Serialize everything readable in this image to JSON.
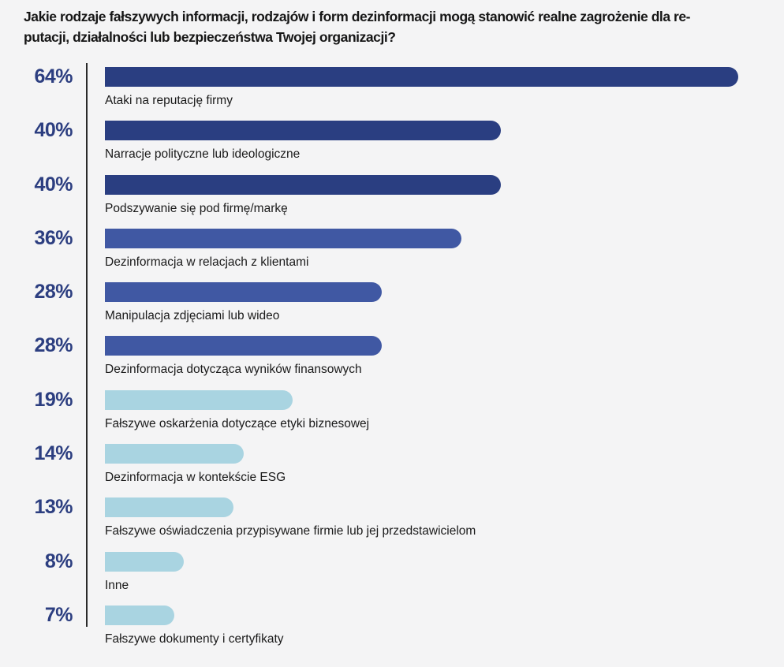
{
  "page": {
    "background_color": "#f4f4f5",
    "title_lines": [
      "Jakie rodzaje fałszywych informacji, rodzajów i form dezinformacji mogą stanowić realne zagrożenie dla re-",
      "putacji, działalności lub bezpieczeństwa Twojej organizacji?"
    ]
  },
  "chart_data": {
    "type": "bar",
    "orientation": "horizontal",
    "title": "Jakie rodzaje fałszywych informacji, rodzajów i form dezinformacji mogą stanowić realne zagrożenie dla reputacji, działalności lub bezpieczeństwa Twojej organizacji?",
    "unit": "%",
    "xlim": [
      0,
      64
    ],
    "grid": false,
    "legend": "none",
    "value_label_position": "left-of-axis",
    "category_label_position": "below-bar",
    "colors": {
      "dark_blue": "#2a3e81",
      "medium_blue": "#4058a3",
      "light_blue": "#a9d4e1",
      "value_text": "#2c3e80",
      "category_text": "#1a1a1a",
      "axis_line": "#2a2a2a",
      "background": "#f4f4f5"
    },
    "categories": [
      "Ataki na reputację firmy",
      "Narracje polityczne lub ideologiczne",
      "Podszywanie się pod firmę/markę",
      "Dezinformacja w relacjach z klientami",
      "Manipulacja zdjęciami lub wideo",
      "Dezinformacja dotycząca wyników finansowych",
      "Fałszywe oskarżenia dotyczące etyki biznesowej",
      "Dezinformacja w kontekście ESG",
      "Fałszywe oświadczenia przypisywane firmie lub jej przedstawicielom",
      "Inne",
      "Fałszywe dokumenty i certyfikaty"
    ],
    "values": [
      64,
      40,
      40,
      36,
      28,
      28,
      19,
      14,
      13,
      8,
      7
    ],
    "rows": [
      {
        "value": 64,
        "value_label": "64%",
        "label": "Ataki na reputację firmy",
        "color": "#2a3e81",
        "color_name": "dark_blue"
      },
      {
        "value": 40,
        "value_label": "40%",
        "label": "Narracje polityczne lub ideologiczne",
        "color": "#2a3e81",
        "color_name": "dark_blue"
      },
      {
        "value": 40,
        "value_label": "40%",
        "label": "Podszywanie się pod firmę/markę",
        "color": "#2a3e81",
        "color_name": "dark_blue"
      },
      {
        "value": 36,
        "value_label": "36%",
        "label": "Dezinformacja w relacjach z klientami",
        "color": "#4058a3",
        "color_name": "medium_blue"
      },
      {
        "value": 28,
        "value_label": "28%",
        "label": "Manipulacja zdjęciami lub wideo",
        "color": "#4058a3",
        "color_name": "medium_blue"
      },
      {
        "value": 28,
        "value_label": "28%",
        "label": "Dezinformacja dotycząca wyników finansowych",
        "color": "#4058a3",
        "color_name": "medium_blue"
      },
      {
        "value": 19,
        "value_label": "19%",
        "label": "Fałszywe oskarżenia dotyczące etyki biznesowej",
        "color": "#a9d4e1",
        "color_name": "light_blue"
      },
      {
        "value": 14,
        "value_label": "14%",
        "label": "Dezinformacja w kontekście ESG",
        "color": "#a9d4e1",
        "color_name": "light_blue"
      },
      {
        "value": 13,
        "value_label": "13%",
        "label": "Fałszywe oświadczenia przypisywane firmie lub jej przedstawicielom",
        "color": "#a9d4e1",
        "color_name": "light_blue"
      },
      {
        "value": 8,
        "value_label": "8%",
        "label": "Inne",
        "color": "#a9d4e1",
        "color_name": "light_blue"
      },
      {
        "value": 7,
        "value_label": "7%",
        "label": "Fałszywe dokumenty i certyfikaty",
        "color": "#a9d4e1",
        "color_name": "light_blue"
      }
    ]
  }
}
